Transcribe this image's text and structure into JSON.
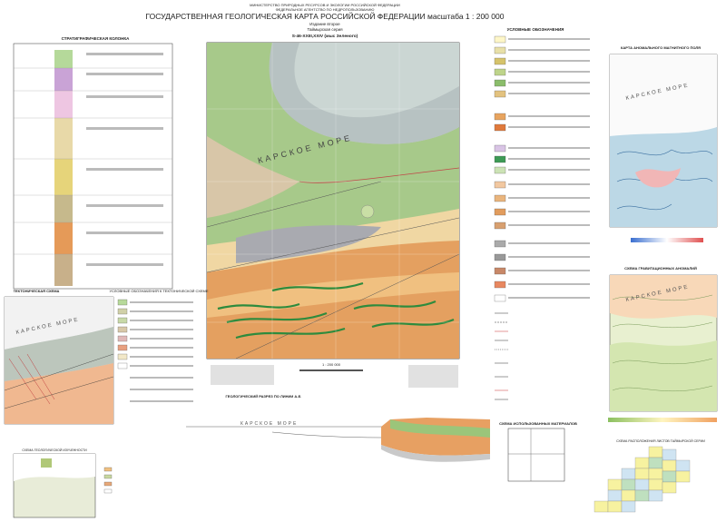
{
  "header": {
    "ministry": [
      "МИНИСТЕРСТВО ПРИРОДНЫХ РЕСУРСОВ И ЭКОЛОГИИ РОССИЙСКОЙ ФЕДЕРАЦИИ",
      "ФЕДЕРАЛЬНОЕ АГЕНТСТВО ПО НЕДРОПОЛЬЗОВАНИЮ"
    ],
    "title": "ГОСУДАРСТВЕННАЯ ГЕОЛОГИЧЕСКАЯ КАРТА РОССИЙСКОЙ ФЕДЕРАЦИИ масштаба 1 : 200 000",
    "edition": "Издание второе",
    "series": "Таймырская серия",
    "sheet": "S-46-XXIII,XXIV (мыс Зеленого)"
  },
  "map": {
    "sea_label": "КАРСКОЕ МОРЕ",
    "scale": "1 : 200 000"
  },
  "panels": {
    "strat_column": "СТРАТИГРАФИЧЕСКАЯ КОЛОНКА",
    "legend": "УСЛОВНЫЕ ОБОЗНАЧЕНИЯ",
    "tectonic": "ТЕКТОНИЧЕСКАЯ СХЕМА",
    "tectonic_legend": "УСЛОВНЫЕ ОБОЗНАЧЕНИЯ К ТЕКТОНИЧЕСКОЙ СХЕМЕ",
    "magnetic": "КАРТА АНОМАЛЬНОГО МАГНИТНОГО ПОЛЯ",
    "gravity": "СХЕМА ГРАВИТАЦИОННЫХ АНОМАЛИЙ",
    "section": "ГЕОЛОГИЧЕСКИЙ РАЗРЕЗ ПО ЛИНИИ А-Б",
    "materials": "СХЕМА ИСПОЛЬЗОВАННЫХ МАТЕРИАЛОВ",
    "index": "СХЕМА РАСПОЛОЖЕНИЯ ЛИСТОВ ТАЙМЫРСКОЙ СЕРИИ",
    "small_scheme": "СХЕМА ГЕОЛОГИЧЕСКОЙ ИЗУЧЕННОСТИ",
    "mag_sea": "КАРСКОЕ МОРЕ",
    "tect_sea": "КАРСКОЕ МОРЕ",
    "grav_sea": "КАРСКОЕ МОРЕ",
    "sec_sea": "КАРСКОЕ МОРЕ"
  }
}
